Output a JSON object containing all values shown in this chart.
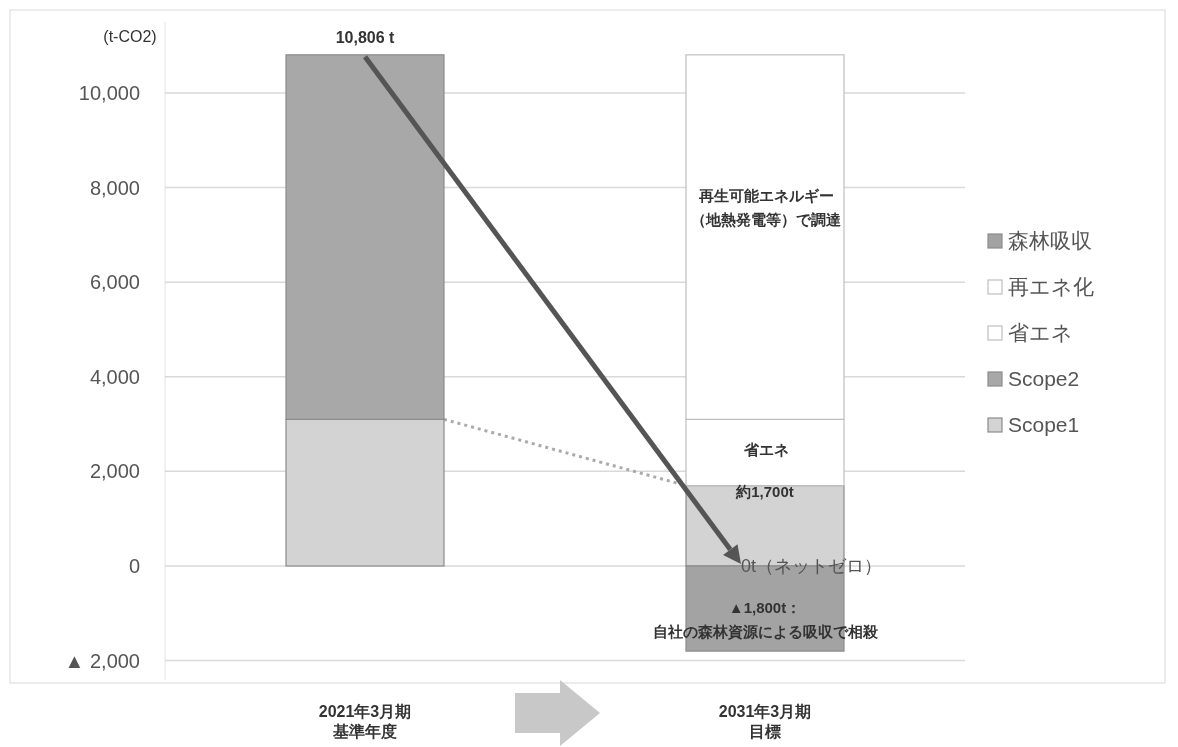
{
  "chart_data": {
    "type": "bar",
    "stacked": true,
    "ylabel": "(t-CO2)",
    "categories": [
      "2021年3月期基準年度",
      "2031年3月期目標"
    ],
    "series": [
      {
        "name": "Scope1",
        "color": "#d3d3d3",
        "values": [
          3100,
          1700
        ]
      },
      {
        "name": "Scope2",
        "color": "#a8a8a8",
        "values": [
          7706,
          null
        ]
      },
      {
        "name": "省エネ",
        "color": "#ffffff",
        "values": [
          null,
          1400
        ]
      },
      {
        "name": "再エネ化",
        "color": "#ffffff",
        "values": [
          null,
          7706
        ]
      },
      {
        "name": "森林吸収",
        "color": "#a3a3a3",
        "values": [
          null,
          -1800
        ]
      }
    ],
    "ylim": [
      -2400,
      11500
    ],
    "yticks": [
      {
        "value": -2000,
        "label": "▲ 2,000"
      },
      {
        "value": 0,
        "label": "0"
      },
      {
        "value": 2000,
        "label": "2,000"
      },
      {
        "value": 4000,
        "label": "4,000"
      },
      {
        "value": 6000,
        "label": "6,000"
      },
      {
        "value": 8000,
        "label": "8,000"
      },
      {
        "value": 10000,
        "label": "10,000"
      }
    ],
    "grid": "y",
    "legend": "right",
    "annotations": [
      {
        "text": "10,806 t",
        "x": "2021年3月期基準年度",
        "y": 10806
      },
      "再生可能エネルギー（地熱発電等）で調達",
      "省エネ",
      {
        "text": "約1,700t",
        "x": "2031年3月期目標",
        "y": 1700
      },
      {
        "text": "0t（ネットゼロ）",
        "x": "2031年3月期目標",
        "y": 0
      },
      {
        "text": "▲1,800t：自社の森林資源による吸収で相殺",
        "x": "2031年3月期目標",
        "y": -1800
      }
    ]
  }
}
